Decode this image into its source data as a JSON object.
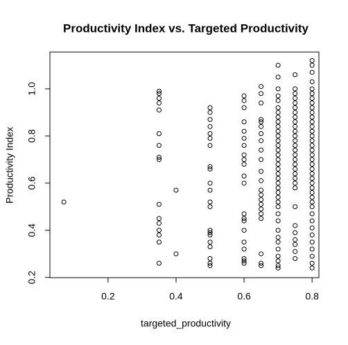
{
  "chart_data": {
    "type": "scatter",
    "title": "Productivity Index vs. Targeted Productivity",
    "xlabel": "targeted_productivity",
    "ylabel": "Productivity Index",
    "x": [
      0.07,
      0.35,
      0.35,
      0.35,
      0.35,
      0.35,
      0.35,
      0.35,
      0.35,
      0.35,
      0.35,
      0.35,
      0.35,
      0.35,
      0.35,
      0.35,
      0.35,
      0.4,
      0.4,
      0.5,
      0.5,
      0.5,
      0.5,
      0.5,
      0.5,
      0.5,
      0.5,
      0.5,
      0.5,
      0.5,
      0.5,
      0.5,
      0.5,
      0.5,
      0.5,
      0.5,
      0.5,
      0.5,
      0.5,
      0.5,
      0.6,
      0.6,
      0.6,
      0.6,
      0.6,
      0.6,
      0.6,
      0.6,
      0.6,
      0.6,
      0.6,
      0.6,
      0.6,
      0.6,
      0.6,
      0.6,
      0.6,
      0.6,
      0.6,
      0.6,
      0.6,
      0.65,
      0.65,
      0.65,
      0.65,
      0.65,
      0.65,
      0.65,
      0.65,
      0.65,
      0.65,
      0.65,
      0.65,
      0.65,
      0.65,
      0.65,
      0.65,
      0.65,
      0.65,
      0.65,
      0.65,
      0.65,
      0.65,
      0.7,
      0.7,
      0.7,
      0.7,
      0.7,
      0.7,
      0.7,
      0.7,
      0.7,
      0.7,
      0.7,
      0.7,
      0.7,
      0.7,
      0.7,
      0.7,
      0.7,
      0.7,
      0.7,
      0.7,
      0.7,
      0.7,
      0.7,
      0.7,
      0.7,
      0.7,
      0.7,
      0.7,
      0.7,
      0.7,
      0.7,
      0.7,
      0.7,
      0.7,
      0.7,
      0.7,
      0.7,
      0.75,
      0.75,
      0.75,
      0.75,
      0.75,
      0.75,
      0.75,
      0.75,
      0.75,
      0.75,
      0.75,
      0.75,
      0.75,
      0.75,
      0.75,
      0.75,
      0.75,
      0.75,
      0.75,
      0.75,
      0.75,
      0.75,
      0.75,
      0.75,
      0.75,
      0.75,
      0.75,
      0.75,
      0.75,
      0.75,
      0.8,
      0.8,
      0.8,
      0.8,
      0.8,
      0.8,
      0.8,
      0.8,
      0.8,
      0.8,
      0.8,
      0.8,
      0.8,
      0.8,
      0.8,
      0.8,
      0.8,
      0.8,
      0.8,
      0.8,
      0.8,
      0.8,
      0.8,
      0.8,
      0.8,
      0.8,
      0.8,
      0.8,
      0.8,
      0.8,
      0.8,
      0.8,
      0.8,
      0.8,
      0.8,
      0.8,
      0.8,
      0.8,
      0.8
    ],
    "y": [
      0.52,
      0.99,
      0.98,
      0.96,
      0.94,
      0.91,
      0.81,
      0.76,
      0.71,
      0.7,
      0.51,
      0.45,
      0.43,
      0.4,
      0.38,
      0.35,
      0.26,
      0.57,
      0.3,
      0.92,
      0.9,
      0.87,
      0.84,
      0.81,
      0.79,
      0.76,
      0.67,
      0.66,
      0.6,
      0.57,
      0.52,
      0.5,
      0.4,
      0.39,
      0.38,
      0.35,
      0.33,
      0.28,
      0.26,
      0.25,
      0.97,
      0.95,
      0.92,
      0.86,
      0.82,
      0.79,
      0.76,
      0.72,
      0.7,
      0.68,
      0.63,
      0.6,
      0.47,
      0.45,
      0.44,
      0.4,
      0.35,
      0.32,
      0.28,
      0.27,
      0.26,
      1.01,
      0.98,
      0.94,
      0.87,
      0.86,
      0.84,
      0.81,
      0.78,
      0.74,
      0.7,
      0.65,
      0.61,
      0.57,
      0.55,
      0.53,
      0.51,
      0.49,
      0.47,
      0.45,
      0.3,
      0.26,
      0.25,
      1.1,
      1.05,
      1.0,
      0.97,
      0.95,
      0.92,
      0.9,
      0.88,
      0.86,
      0.84,
      0.82,
      0.8,
      0.78,
      0.76,
      0.74,
      0.72,
      0.7,
      0.68,
      0.66,
      0.64,
      0.62,
      0.6,
      0.58,
      0.56,
      0.54,
      0.52,
      0.5,
      0.47,
      0.44,
      0.4,
      0.37,
      0.35,
      0.32,
      0.29,
      0.27,
      0.25,
      0.24,
      1.06,
      1.0,
      0.98,
      0.96,
      0.94,
      0.92,
      0.9,
      0.88,
      0.86,
      0.84,
      0.82,
      0.8,
      0.78,
      0.76,
      0.74,
      0.72,
      0.7,
      0.68,
      0.66,
      0.64,
      0.62,
      0.6,
      0.58,
      0.5,
      0.42,
      0.39,
      0.36,
      0.34,
      0.31,
      0.28,
      1.12,
      1.1,
      1.07,
      1.03,
      1.0,
      0.98,
      0.96,
      0.94,
      0.92,
      0.9,
      0.88,
      0.86,
      0.84,
      0.82,
      0.8,
      0.78,
      0.76,
      0.74,
      0.72,
      0.7,
      0.68,
      0.66,
      0.64,
      0.62,
      0.6,
      0.58,
      0.56,
      0.54,
      0.52,
      0.5,
      0.47,
      0.44,
      0.41,
      0.38,
      0.35,
      0.32,
      0.29,
      0.26,
      0.24
    ],
    "xlim": [
      0.029,
      0.82
    ],
    "ylim": [
      0.199,
      1.156
    ],
    "xticks": [
      0.2,
      0.4,
      0.6,
      0.8
    ],
    "yticks": [
      0.2,
      0.4,
      0.6,
      0.8,
      {
        "value": 1.0,
        "label": "1.0"
      }
    ],
    "color": "#000000"
  }
}
